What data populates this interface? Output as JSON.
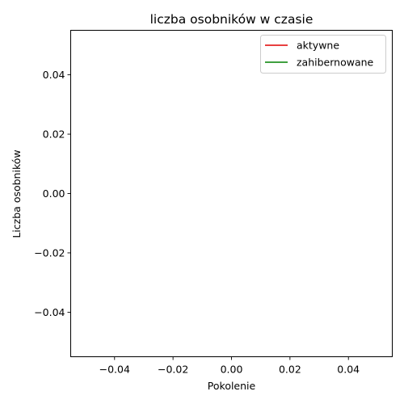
{
  "chart_data": {
    "type": "line",
    "title": "liczba osobników w czasie",
    "xlabel": "Pokolenie",
    "ylabel": "Liczba osobników",
    "xlim": [
      -0.055,
      0.055
    ],
    "ylim": [
      -0.055,
      0.055
    ],
    "xticks": [
      "-0.04",
      "-0.02",
      "0.00",
      "0.02",
      "0.04"
    ],
    "yticks": [
      "0.04",
      "0.02",
      "0.00",
      "-0.02",
      "-0.04"
    ],
    "series": [
      {
        "name": "aktywne",
        "color": "#e00000",
        "x": [],
        "y": []
      },
      {
        "name": "zahibernowane",
        "color": "#008000",
        "x": [],
        "y": []
      }
    ],
    "legend": "top-right",
    "grid": false
  }
}
